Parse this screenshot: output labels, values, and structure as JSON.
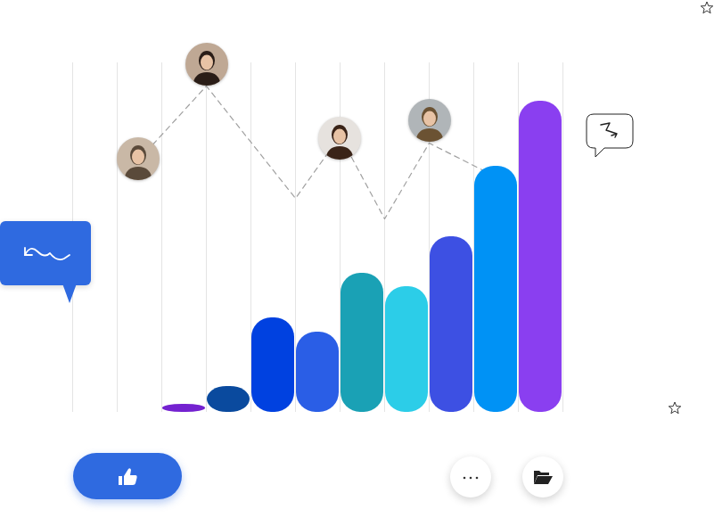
{
  "chart_data": {
    "type": "bar",
    "xlim": [
      -0.5,
      10.5
    ],
    "xticks": [
      -0.5,
      0.5,
      1.5,
      2.5,
      3.5,
      4.5,
      5.5,
      6.5,
      7.5,
      8.5,
      9.5,
      10.5
    ],
    "ylim": [
      0,
      392
    ],
    "grid": true,
    "tick_labels": false,
    "series": [
      {
        "type": "line",
        "line_style": "dashed",
        "color": "#a0a0a0",
        "x": [
          1,
          2.5,
          4.5,
          5.5,
          6.5,
          7.5,
          9
        ],
        "values": [
          284,
          366,
          240,
          310,
          217,
          302,
          264
        ]
      },
      {
        "type": "bar",
        "x": [
          2,
          3,
          4,
          5,
          6,
          7,
          8,
          9,
          10
        ],
        "values": [
          9,
          29,
          106,
          90,
          156,
          141,
          197,
          276,
          349
        ],
        "colors": [
          "#7422d0",
          "#0a4a9e",
          "#0041e0",
          "#2a5ee6",
          "#1aa1b5",
          "#2ccde8",
          "#3d50e3",
          "#0092f5",
          "#8a3ff0"
        ]
      }
    ]
  }
}
